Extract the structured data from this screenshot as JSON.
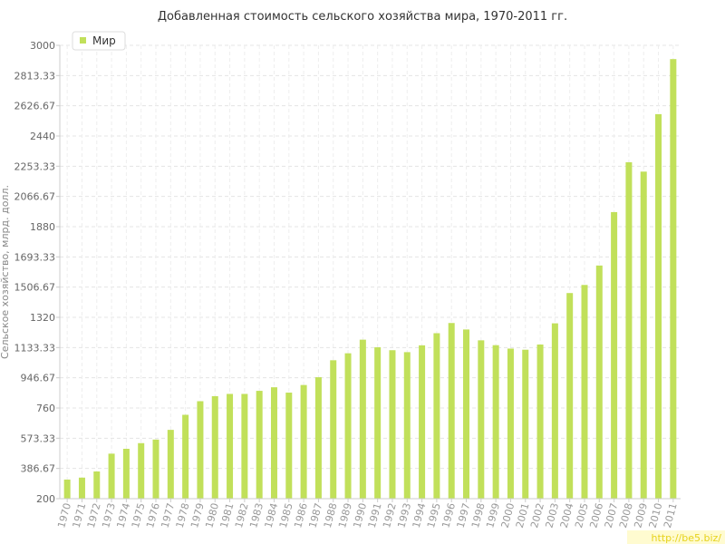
{
  "chart_data": {
    "type": "bar",
    "title": "Добавленная стоимость сельского хозяйства мира, 1970-2011 гг.",
    "ylabel": "Сельское хозяйство, млрд. долл.",
    "xlabel": "",
    "ylim": [
      200,
      3000
    ],
    "yticks": [
      "200",
      "386.67",
      "573.33",
      "760",
      "946.67",
      "1133.33",
      "1320",
      "1506.67",
      "1693.33",
      "1880",
      "2066.67",
      "2253.33",
      "2440",
      "2626.67",
      "2813.33",
      "3000"
    ],
    "grid": true,
    "legend_position": "top-left",
    "color": "#c1e05a",
    "categories": [
      "1970",
      "1971",
      "1972",
      "1973",
      "1974",
      "1975",
      "1976",
      "1977",
      "1978",
      "1979",
      "1980",
      "1981",
      "1982",
      "1983",
      "1984",
      "1985",
      "1986",
      "1987",
      "1988",
      "1989",
      "1990",
      "1991",
      "1992",
      "1993",
      "1994",
      "1995",
      "1996",
      "1997",
      "1998",
      "1999",
      "2000",
      "2001",
      "2002",
      "2003",
      "2004",
      "2005",
      "2006",
      "2007",
      "2008",
      "2009",
      "2010",
      "2011"
    ],
    "series": [
      {
        "name": "Мир",
        "values": [
          318,
          330,
          368,
          478,
          508,
          543,
          565,
          625,
          718,
          802,
          833,
          847,
          847,
          866,
          888,
          855,
          902,
          950,
          1055,
          1098,
          1182,
          1135,
          1117,
          1105,
          1147,
          1222,
          1285,
          1245,
          1178,
          1148,
          1127,
          1120,
          1152,
          1283,
          1470,
          1520,
          1640,
          1970,
          2278,
          2220,
          2575,
          2915
        ]
      }
    ]
  },
  "watermark": "http://be5.biz/"
}
